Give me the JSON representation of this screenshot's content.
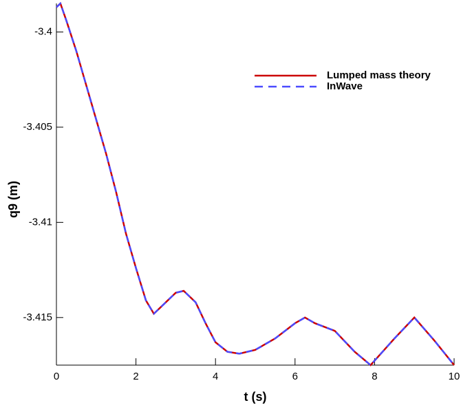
{
  "chart_data": {
    "type": "line",
    "xlabel": "t (s)",
    "ylabel": "q9 (m)",
    "x": [
      0,
      0.1,
      0.25,
      0.5,
      0.75,
      1,
      1.25,
      1.5,
      1.75,
      2,
      2.25,
      2.45,
      2.7,
      3,
      3.2,
      3.5,
      3.75,
      4,
      4.3,
      4.6,
      5,
      5.5,
      6,
      6.25,
      6.5,
      7,
      7.5,
      7.9,
      8.5,
      9,
      9.5,
      10
    ],
    "series": [
      {
        "name": "Lumped mass theory",
        "color": "#cc0000",
        "dashed": false,
        "values": [
          -3.3987,
          -3.3985,
          -3.3994,
          -3.401,
          -3.4028,
          -3.4046,
          -3.4064,
          -3.4084,
          -3.4106,
          -3.4124,
          -3.4141,
          -3.4148,
          -3.4143,
          -3.4137,
          -3.4136,
          -3.4142,
          -3.4153,
          -3.4163,
          -3.4168,
          -3.4169,
          -3.4167,
          -3.4161,
          -3.4153,
          -3.415,
          -3.4153,
          -3.4157,
          -3.4168,
          -3.4175,
          -3.4161,
          -3.415,
          -3.4162,
          -3.4175
        ]
      },
      {
        "name": "InWave",
        "color": "#4a4aff",
        "dashed": true,
        "values": [
          -3.3987,
          -3.3985,
          -3.3994,
          -3.401,
          -3.4028,
          -3.4046,
          -3.4064,
          -3.4084,
          -3.4106,
          -3.4124,
          -3.4141,
          -3.4148,
          -3.4143,
          -3.4137,
          -3.4136,
          -3.4142,
          -3.4153,
          -3.4163,
          -3.4168,
          -3.4169,
          -3.4167,
          -3.4161,
          -3.4153,
          -3.415,
          -3.4153,
          -3.4157,
          -3.4168,
          -3.4175,
          -3.4161,
          -3.415,
          -3.4162,
          -3.4175
        ]
      }
    ],
    "xlim": [
      0,
      10
    ],
    "xticks": [
      0,
      2,
      4,
      6,
      8,
      10
    ],
    "ylim": [
      -3.4175,
      -3.3985
    ],
    "yticks": [
      -3.4,
      -3.405,
      -3.41,
      -3.415
    ],
    "grid": false
  }
}
